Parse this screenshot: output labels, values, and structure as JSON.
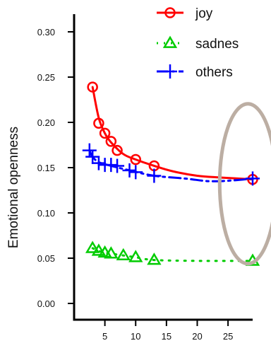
{
  "chart_data": {
    "type": "line",
    "ylabel": "Emotional openness",
    "xlim": [
      0,
      29
    ],
    "ylim": [
      0,
      0.3
    ],
    "x_ticks": [
      {
        "value": 5,
        "label": "5"
      },
      {
        "value": 10,
        "label": "10"
      },
      {
        "value": 15,
        "label": "15"
      },
      {
        "value": 20,
        "label": "20"
      },
      {
        "value": 25,
        "label": "25"
      }
    ],
    "y_ticks": [
      {
        "value": 0.0,
        "label": "0.00"
      },
      {
        "value": 0.05,
        "label": "0.05"
      },
      {
        "value": 0.1,
        "label": "0.10"
      },
      {
        "value": 0.15,
        "label": "0.15"
      },
      {
        "value": 0.2,
        "label": "0.20"
      },
      {
        "value": 0.25,
        "label": "0.25"
      },
      {
        "value": 0.3,
        "label": "0.30"
      }
    ],
    "series": [
      {
        "name": "joy",
        "color": "#ff0000",
        "marker": "circle",
        "line_style": "solid",
        "points": [
          [
            3,
            0.239
          ],
          [
            4,
            0.199
          ],
          [
            5,
            0.188
          ],
          [
            6,
            0.179
          ],
          [
            7,
            0.169
          ],
          [
            10,
            0.159
          ],
          [
            13,
            0.152
          ],
          [
            29,
            0.137
          ]
        ],
        "curve": [
          [
            3,
            0.239
          ],
          [
            4,
            0.205
          ],
          [
            5,
            0.188
          ],
          [
            6,
            0.178
          ],
          [
            8,
            0.165
          ],
          [
            10,
            0.159
          ],
          [
            13,
            0.152
          ],
          [
            16,
            0.146
          ],
          [
            20,
            0.141
          ],
          [
            24,
            0.139
          ],
          [
            29,
            0.137
          ]
        ]
      },
      {
        "name": "sadness",
        "legend_label": "sadnes",
        "color": "#00cc00",
        "marker": "triangle",
        "line_style": "dotted",
        "points": [
          [
            3,
            0.061
          ],
          [
            4,
            0.058
          ],
          [
            5,
            0.056
          ],
          [
            6,
            0.055
          ],
          [
            8,
            0.053
          ],
          [
            10,
            0.051
          ],
          [
            13,
            0.048
          ],
          [
            29,
            0.047
          ]
        ],
        "curve": [
          [
            3,
            0.061
          ],
          [
            4,
            0.058
          ],
          [
            5,
            0.056
          ],
          [
            6,
            0.055
          ],
          [
            8,
            0.053
          ],
          [
            10,
            0.051
          ],
          [
            13,
            0.048
          ],
          [
            20,
            0.047
          ],
          [
            29,
            0.047
          ]
        ]
      },
      {
        "name": "others",
        "color": "#0000ff",
        "marker": "plus",
        "line_style": "dashdot",
        "points": [
          [
            2.5,
            0.169
          ],
          [
            3,
            0.162
          ],
          [
            4,
            0.155
          ],
          [
            5,
            0.153
          ],
          [
            6,
            0.153
          ],
          [
            7,
            0.152
          ],
          [
            9,
            0.147
          ],
          [
            10,
            0.145
          ],
          [
            13,
            0.141
          ],
          [
            29,
            0.138
          ]
        ],
        "curve": [
          [
            2.5,
            0.169
          ],
          [
            3,
            0.162
          ],
          [
            4,
            0.156
          ],
          [
            6,
            0.152
          ],
          [
            9,
            0.147
          ],
          [
            13,
            0.141
          ],
          [
            18,
            0.138
          ],
          [
            22,
            0.135
          ],
          [
            26,
            0.136
          ],
          [
            29,
            0.138
          ]
        ]
      }
    ],
    "legend_placement": "top-right",
    "annotation": {
      "shape": "ellipse",
      "color": "#bcaea3",
      "x": 28,
      "y": 0.14
    }
  }
}
